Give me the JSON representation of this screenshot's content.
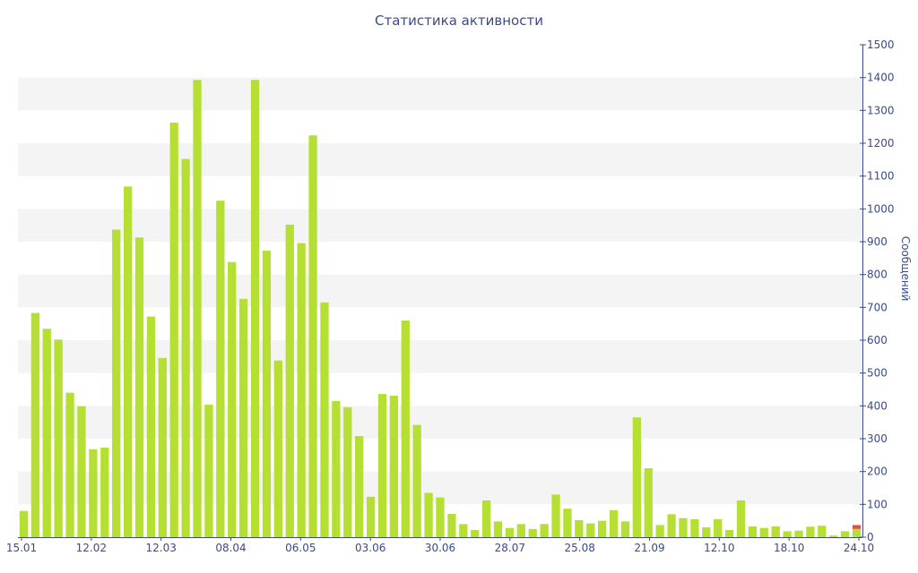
{
  "chart_data": {
    "type": "bar",
    "title": "Статистика активности",
    "ylabel": "Сообщений",
    "y_axis_position": "right",
    "ylim": [
      0,
      1500
    ],
    "yticks": [
      0,
      100,
      200,
      300,
      400,
      500,
      600,
      700,
      800,
      900,
      1000,
      1100,
      1200,
      1300,
      1400,
      1500
    ],
    "x_tick_labels": [
      "15.01",
      "12.02",
      "12.03",
      "08.04",
      "06.05",
      "03.06",
      "30.06",
      "28.07",
      "25.08",
      "21.09",
      "12.10",
      "18.10",
      "24.10"
    ],
    "grid": "horizontal bands",
    "series": [
      {
        "color": "#b5e033",
        "values": [
          80,
          683,
          635,
          602,
          440,
          399,
          268,
          273,
          937,
          1068,
          913,
          672,
          546,
          1263,
          1152,
          1393,
          404,
          1025,
          838,
          726,
          1393,
          873,
          538,
          952,
          896,
          1224,
          715,
          415,
          396,
          308,
          123,
          436,
          431,
          660,
          342,
          135,
          121,
          71,
          40,
          22,
          112,
          48,
          28,
          40,
          25,
          40,
          130,
          87,
          52,
          42,
          50,
          82,
          48,
          365,
          210,
          37,
          70,
          58,
          55,
          30,
          55,
          22,
          112,
          33,
          28,
          33,
          18,
          20,
          32,
          35,
          5,
          18,
          25
        ]
      },
      {
        "color": "#e8503a",
        "values": [
          0,
          0,
          0,
          0,
          0,
          0,
          0,
          0,
          0,
          0,
          0,
          0,
          0,
          0,
          0,
          0,
          0,
          0,
          0,
          0,
          0,
          0,
          0,
          0,
          0,
          0,
          0,
          0,
          0,
          0,
          0,
          0,
          0,
          0,
          0,
          0,
          0,
          0,
          0,
          0,
          0,
          0,
          0,
          0,
          0,
          0,
          0,
          0,
          0,
          0,
          0,
          0,
          0,
          0,
          0,
          0,
          0,
          0,
          0,
          0,
          0,
          0,
          0,
          0,
          0,
          0,
          0,
          0,
          0,
          0,
          0,
          0,
          12
        ]
      }
    ],
    "colors": {
      "axis": "#3b4b87",
      "band": "#f4f4f4"
    }
  }
}
